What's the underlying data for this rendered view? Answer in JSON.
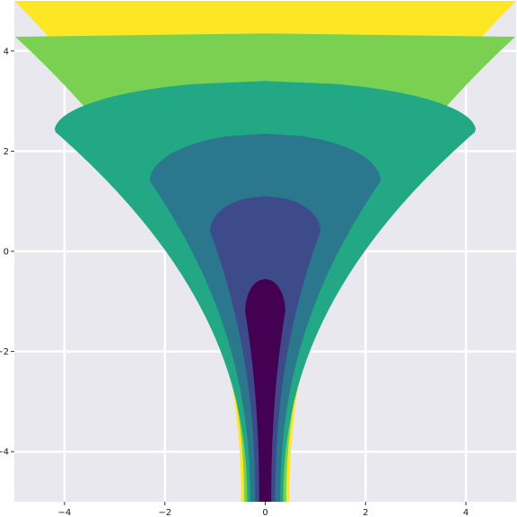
{
  "chart_data": {
    "type": "contour",
    "title": "",
    "xlabel": "",
    "ylabel": "",
    "xlim": [
      -5,
      5
    ],
    "ylim": [
      -5,
      5
    ],
    "grid": true,
    "background_color": "#e8e8ee",
    "grid_color": "#ffffff",
    "x_ticks": [
      -4,
      -2,
      0,
      2,
      4
    ],
    "y_ticks": [
      -4,
      -2,
      0,
      2,
      4
    ],
    "x_tick_labels": [
      "−4",
      "−2",
      "0",
      "2",
      "4"
    ],
    "y_tick_labels": [
      "−4",
      "−2",
      "0",
      "2",
      "4"
    ],
    "levels": [
      {
        "name": "level-1",
        "color": "#440154",
        "center_x": 0.0,
        "bottom_y": -5.0,
        "top_y": -0.55,
        "max_half_width": 0.4,
        "width_at_bottom": 0.12,
        "bulge_y": -1.2
      },
      {
        "name": "level-2",
        "color": "#3d4b8a",
        "center_x": 0.0,
        "bottom_y": -5.0,
        "top_y": 1.1,
        "max_half_width": 1.1,
        "width_at_bottom": 0.2,
        "bulge_y": 0.4
      },
      {
        "name": "level-3",
        "color": "#2a778e",
        "center_x": 0.0,
        "bottom_y": -5.0,
        "top_y": 2.35,
        "max_half_width": 2.3,
        "width_at_bottom": 0.3,
        "bulge_y": 1.4
      },
      {
        "name": "level-4",
        "color": "#22a884",
        "center_x": 0.0,
        "bottom_y": -5.0,
        "top_y": 3.4,
        "max_half_width": 4.2,
        "width_at_bottom": 0.36,
        "bulge_y": 2.4
      },
      {
        "name": "level-5",
        "color": "#7ad151",
        "center_x": 0.0,
        "bottom_y": -5.0,
        "top_y": 4.35,
        "max_half_width": 5.0,
        "width_at_bottom": 0.42,
        "bulge_y": 4.3
      },
      {
        "name": "level-6",
        "color": "#fde725",
        "center_x": 0.0,
        "bottom_y": -5.0,
        "top_y": 5.0,
        "max_half_width": 5.0,
        "width_at_bottom": 0.48,
        "bulge_y": 5.0
      }
    ]
  }
}
